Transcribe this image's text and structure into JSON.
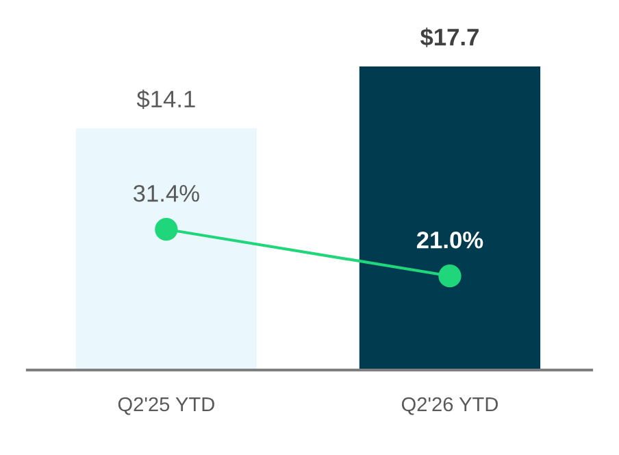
{
  "chart_data": {
    "type": "bar",
    "categories": [
      "Q2'25 YTD",
      "Q2'26 YTD"
    ],
    "series": [
      {
        "colors": [
          "#eaf8fd",
          "#003b4f"
        ],
        "values": [
          14.1,
          17.7
        ],
        "value_labels": [
          "$14.1",
          "$17.7"
        ]
      },
      {
        "type": "line",
        "axis": "y2",
        "color": "#1fd67a",
        "values": [
          31.4,
          21.0
        ],
        "value_labels": [
          "31.4%",
          "21.0%"
        ]
      }
    ],
    "tick_labels": "x",
    "grid": false,
    "legend": false,
    "marker": "circle"
  }
}
